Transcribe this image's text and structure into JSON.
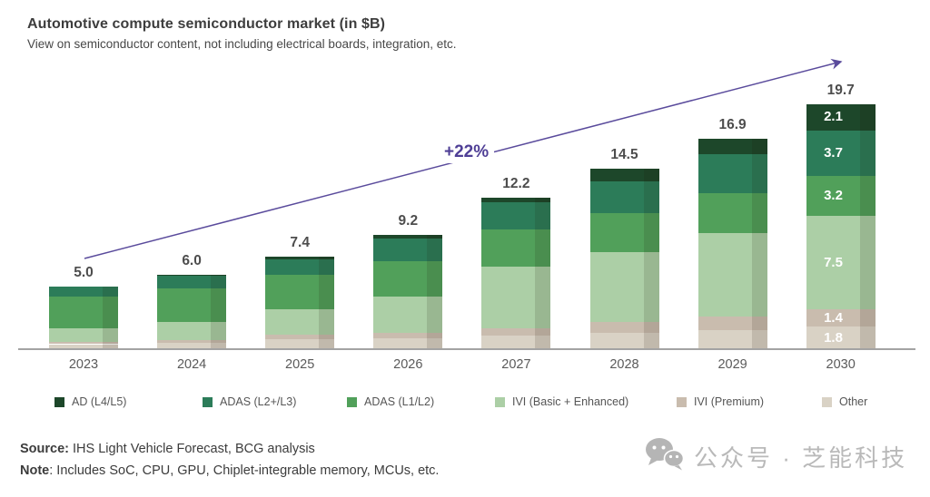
{
  "title": "Automotive compute semiconductor market (in $B)",
  "subtitle": "View on semiconductor content, not including electrical boards, integration, etc.",
  "chart_data": {
    "type": "bar",
    "stacked": true,
    "title": "Automotive compute semiconductor market (in $B)",
    "subtitle": "View on semiconductor content, not including electrical boards, integration, etc.",
    "categories": [
      "2023",
      "2024",
      "2025",
      "2026",
      "2027",
      "2028",
      "2029",
      "2030"
    ],
    "totals": [
      5.0,
      6.0,
      7.4,
      9.2,
      12.2,
      14.5,
      16.9,
      19.7
    ],
    "series": [
      {
        "name": "AD (L4/L5)",
        "color": "#1d472a",
        "values": [
          0.0,
          0.1,
          0.2,
          0.3,
          0.4,
          1.0,
          1.2,
          2.1
        ]
      },
      {
        "name": "ADAS (L2+/L3)",
        "color": "#2c7c59",
        "values": [
          0.8,
          1.0,
          1.2,
          1.8,
          2.2,
          2.6,
          3.2,
          3.7
        ]
      },
      {
        "name": "ADAS (L1/L2)",
        "color": "#51a05a",
        "values": [
          2.5,
          2.7,
          2.8,
          2.9,
          3.0,
          3.1,
          3.2,
          3.2
        ]
      },
      {
        "name": "IVI (Basic + Enhanced)",
        "color": "#accfa6",
        "values": [
          1.1,
          1.5,
          2.0,
          2.9,
          4.9,
          5.6,
          6.7,
          7.5
        ]
      },
      {
        "name": "IVI (Premium)",
        "color": "#c9bcae",
        "values": [
          0.2,
          0.2,
          0.4,
          0.4,
          0.6,
          0.9,
          1.1,
          1.4
        ]
      },
      {
        "name": "Other",
        "color": "#d9d2c5",
        "values": [
          0.4,
          0.5,
          0.8,
          0.9,
          1.1,
          1.3,
          1.5,
          1.8
        ]
      }
    ],
    "segment_labels_year": "2030",
    "segment_labels_2030": [
      "2.1",
      "3.7",
      "3.2",
      "7.5",
      "1.4",
      "1.8"
    ],
    "growth_label": "+22%",
    "growth_color": "#4f3f96",
    "arrow_color": "#5a4b9c",
    "ylim": [
      0,
      21
    ],
    "grid": false,
    "legend_position": "bottom"
  },
  "footer": {
    "source_label": "Source:",
    "source_text": " IHS Light Vehicle Forecast, BCG analysis",
    "note_label": "Note",
    "note_text": ": Includes SoC, CPU, GPU, Chiplet-integrable memory, MCUs, etc."
  },
  "watermark": {
    "icon": "wechat-icon",
    "text": "公众号 · 芝能科技"
  }
}
